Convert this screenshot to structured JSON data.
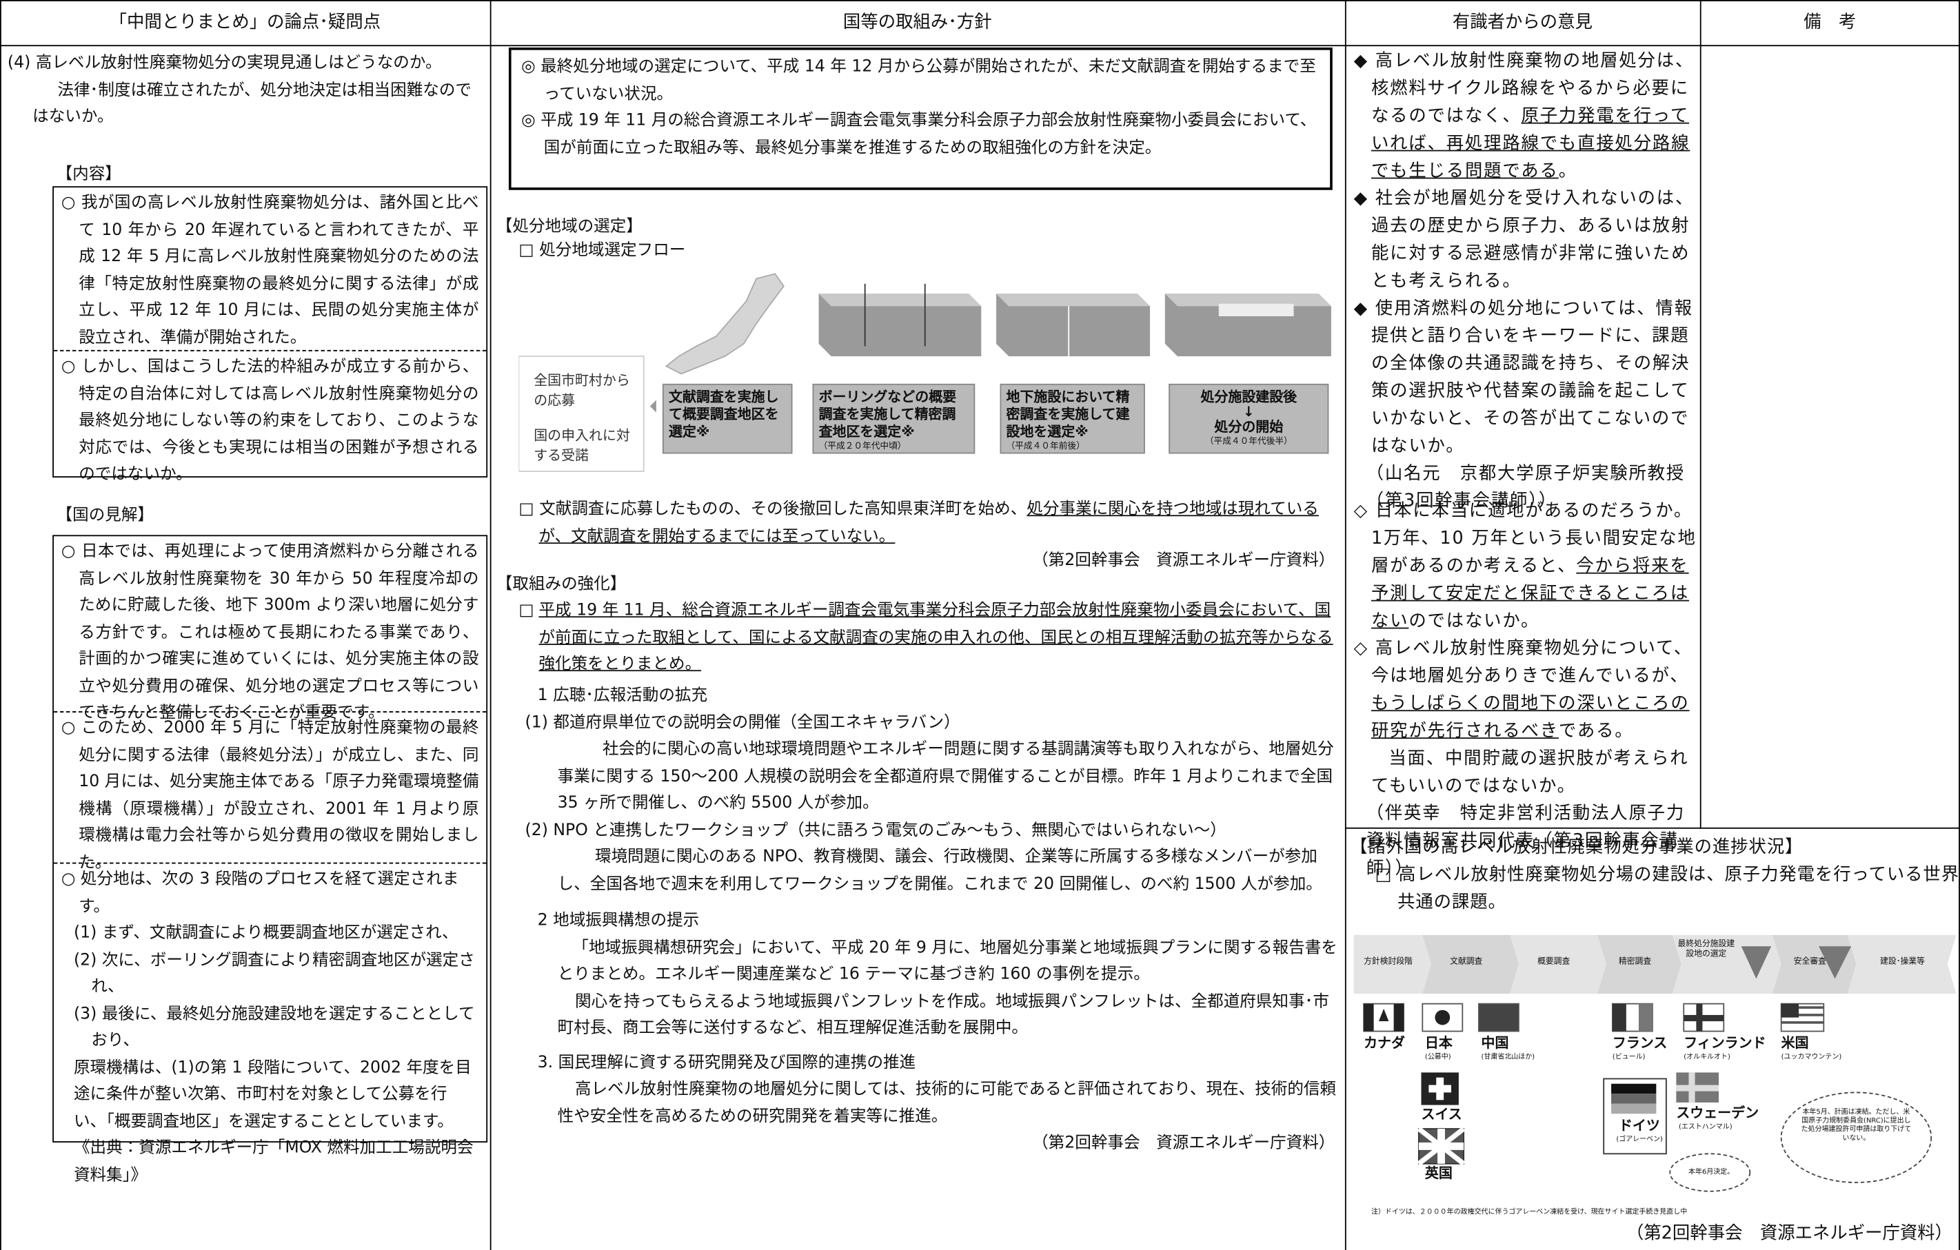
{
  "header": {
    "col1": "「中間とりまとめ」の論点･疑問点",
    "col2": "国等の取組み･方針",
    "col3": "有識者からの意見",
    "col4": "備　考"
  },
  "issue": {
    "question": "(4) 高レベル放射性廃棄物処分の実現見通しはどうなのか。",
    "detail": "法律･制度は確立されたが、処分地決定は相当困難なのではないか。",
    "content_heading": "【内容】",
    "content_items": [
      "○ 我が国の高レベル放射性廃棄物処分は、諸外国と比べて 10 年から 20 年遅れていると言われてきたが、平成 12 年 5 月に高レベル放射性廃棄物処分のための法律「特定放射性廃棄物の最終処分に関する法律」が成立し、平成 12 年 10 月には、民間の処分実施主体が設立され、準備が開始された。",
      "○ しかし、国はこうした法的枠組みが成立する前から、特定の自治体に対しては高レベル放射性廃棄物処分の最終処分地にしない等の約束をしており、このような対応では、今後とも実現には相当の困難が予想されるのではないか。"
    ],
    "view_heading": "【国の見解】",
    "view_items": [
      "○ 日本では、再処理によって使用済燃料から分離される高レベル放射性廃棄物を 30 年から 50 年程度冷却のために貯蔵した後、地下 300m より深い地層に処分する方針です。これは極めて長期にわたる事業であり、計画的かつ確実に進めていくには、処分実施主体の設立や処分費用の確保、処分地の選定プロセス等についてきちんと整備しておくことが重要です。",
      "○ このため、2000 年 5 月に「特定放射性廃棄物の最終処分に関する法律（最終処分法）」が成立し、また、同 10 月には、処分実施主体である「原子力発電環境整備機構（原環機構）」が設立され、2001 年 1 月より原環機構は電力会社等から処分費用の徴収を開始しました。"
    ],
    "process_intro": "○ 処分地は、次の 3 段階のプロセスを経て選定されます。",
    "process_steps": [
      "(1) まず、文献調査により概要調査地区が選定され、",
      "(2) 次に、ボーリング調査により精密調査地区が選定され、",
      "(3) 最後に、最終処分施設建設地を選定することとしており、"
    ],
    "process_note": "原環機構は、(1)の第 1 段階について、2002 年度を目途に条件が整い次第、市町村を対象として公募を行い、「概要調査地区」を選定することとしています。",
    "process_source": "《出典：資源エネルギー庁「MOX 燃料加工工場説明会資料集」》"
  },
  "policy": {
    "summary": [
      "◎ 最終処分地域の選定について、平成 14 年 12 月から公募が開始されたが、未だ文献調査を開始するまで至っていない状況。",
      "◎ 平成 19 年 11 月の総合資源エネルギー調査会電気事業分科会原子力部会放射性廃棄物小委員会において、国が前面に立った取組み等、最終処分事業を推進するための取組強化の方針を決定。"
    ],
    "selection_heading": "【処分地域の選定】",
    "flow_title": "□ 処分地域選定フロー",
    "flow": {
      "entry": [
        "全国市町村からの応募",
        "国の申入れに対する受諾"
      ],
      "steps": [
        {
          "label": "文献調査を実施して概要調査地区を選定※"
        },
        {
          "label": "ボーリングなどの概要調査を実施して精密調査地区を選定※",
          "period": "（平成２０年代中頃）"
        },
        {
          "label": "地下施設において精密調査を実施して建設地を選定※",
          "period": "（平成４０年前後）"
        },
        {
          "label": "処分施設建設後",
          "arrow": "↓",
          "label2": "処分の開始",
          "period": "（平成４０年代後半）"
        }
      ]
    },
    "status_plain": "□ 文献調査に応募したものの、その後撤回した高知県東洋町を始め、",
    "status_underlined": "処分事業に関心を持つ地域は現れているが、文献調査を開始するまでには至っていない。",
    "source1": "（第2回幹事会　資源エネルギー庁資料）",
    "strengthen_heading": "【取組みの強化】",
    "strengthen_mark": "□",
    "strengthen_text": "平成 19 年 11 月、総合資源エネルギー調査会電気事業分科会原子力部会放射性廃棄物小委員会において、国が前面に立った取組として、国による文献調査の実施の申入れの他、国民との相互理解活動の拡充等からなる強化策をとりまとめ。",
    "sections": [
      {
        "title": "1 広聴･広報活動の拡充",
        "items": [
          {
            "title": "(1) 都道府県単位での説明会の開催（全国エネキャラバン）",
            "text": "社会的に関心の高い地球環境問題やエネルギー問題に関する基調講演等も取り入れながら、地層処分事業に関する 150～200 人規模の説明会を全都道府県で開催することが目標。昨年 1 月よりこれまで全国 35 ヶ所で開催し、のべ約 5500 人が参加。"
          },
          {
            "title": "(2) NPO と連携したワークショップ（共に語ろう電気のごみ～もう、無関心ではいられない～）",
            "text": "環境問題に関心のある NPO、教育機関、議会、行政機関、企業等に所属する多様なメンバーが参加し、全国各地で週末を利用してワークショップを開催。これまで 20 回開催し、のべ約 1500 人が参加。"
          }
        ]
      },
      {
        "title": "2 地域振興構想の提示",
        "paragraphs": [
          "「地域振興構想研究会」において、平成 20 年 9 月に、地層処分事業と地域振興プランに関する報告書をとりまとめ。エネルギー関連産業など 16 テーマに基づき約 160 の事例を提示。",
          "関心を持ってもらえるよう地域振興パンフレットを作成。地域振興パンフレットは、全都道府県知事･市町村長、商工会等に送付するなど、相互理解促進活動を展開中。"
        ]
      },
      {
        "title": "3. 国民理解に資する研究開発及び国際的連携の推進",
        "paragraphs": [
          "高レベル放射性廃棄物の地層処分に関しては、技術的に可能であると評価されており、現在、技術的信頼性や安全性を高めるための研究開発を着実等に推進。"
        ]
      }
    ],
    "source2": "（第2回幹事会　資源エネルギー庁資料）"
  },
  "opinions": {
    "yamana": [
      {
        "plain": "◆ 高レベル放射性廃棄物の地層処分は、核燃料サイクル路線をやるから必要になるのではなく、",
        "underlined": "原子力発電を行っていれば、再処理路線でも直接処分路線でも生じる問題である",
        "tail": "。"
      },
      {
        "plain": "◆ 社会が地層処分を受け入れないのは、過去の歴史から原子力、あるいは放射能に対する忌避感情が非常に強いためとも考えられる。"
      },
      {
        "plain": "◆ 使用済燃料の処分地については、情報提供と語り合いをキーワードに、課題の全体像の共通認識を持ち、その解決策の選択肢や代替案の議論を起こしていかないと、その答が出てこないのではないか。"
      }
    ],
    "yamana_source": "（山名元　京都大学原子炉実験所教授（第3回幹事会講師））",
    "ban": [
      {
        "plain": "◇ 日本に本当に適地があるのだろうか。1万年、10 万年という長い間安定な地層があるのか考えると、",
        "underlined": "今から将来を予測して安定だと保証できるところはない",
        "tail": "のではないか。"
      },
      {
        "plain": "◇ 高レベル放射性廃棄物処分について、今は地層処分ありきで進んでいるが、",
        "underlined": "もうしばらくの間地下の深いところの研究が先行されるべき",
        "tail": "である。"
      }
    ],
    "ban_extra": "当面、中間貯蔵の選択肢が考えられてもいいのではないか。",
    "ban_source": "（伴英幸　特定非営利活動法人原子力資料情報室共同代表（第3回幹事会講師））"
  },
  "world": {
    "heading": "【諸外国の高レベル放射性廃棄物処分事業の進捗状況】",
    "text": "□ 高レベル放射性廃棄物処分場の建設は、原子力発電を行っている世界共通の課題。",
    "stages": [
      "方針検討段階",
      "文献調査",
      "概要調査",
      "精密調査",
      "最終処分施設建設地の選定",
      "安全審査",
      "建設･操業等"
    ],
    "countries": [
      {
        "name": "カナダ"
      },
      {
        "name": "日本",
        "note": "(公募中)"
      },
      {
        "name": "中国",
        "note": "(甘粛省北山ほか)"
      },
      {
        "name": "フランス",
        "note": "(ビュール)"
      },
      {
        "name": "フィンランド",
        "note": "(オルキルオト)"
      },
      {
        "name": "米国",
        "note": "(ユッカマウンテン)"
      },
      {
        "name": "スイス"
      },
      {
        "name": "英国"
      },
      {
        "name": "ドイツ",
        "note": "(ゴアレーベン)"
      },
      {
        "name": "スウェーデン",
        "note": "(エストハンマル)"
      }
    ],
    "bubble_sweden": "本年6月決定。",
    "bubble_us": "本年5月、計画は凍結。ただし、米国原子力規制委員会(NRC)に提出した処分場建設許可申請は取り下げていない。",
    "footnote": "注）ドイツは、２０００年の政権交代に伴うゴアレーベン凍結を受け、現在サイト選定手続き見直し中",
    "source": "（第2回幹事会　資源エネルギー庁資料）"
  }
}
